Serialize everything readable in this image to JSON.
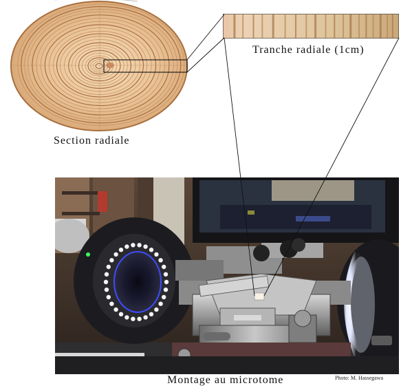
{
  "labels": {
    "section": "Section radiale",
    "tranche": "Tranche radiale (1cm)",
    "montage": "Montage au microtome",
    "credit": "Photo: M. Hassegawa"
  },
  "rings": [
    0.04,
    0.07,
    0.1,
    0.13,
    0.16,
    0.2,
    0.24,
    0.28,
    0.32,
    0.36,
    0.41,
    0.46,
    0.5,
    0.54,
    0.59,
    0.64,
    0.69,
    0.74,
    0.79,
    0.84,
    0.88,
    0.92,
    0.96
  ],
  "strip_bands": [
    0.06,
    0.11,
    0.17,
    0.22,
    0.28,
    0.35,
    0.41,
    0.47,
    0.52,
    0.58,
    0.63,
    0.68,
    0.72,
    0.77,
    0.81,
    0.85,
    0.89,
    0.93,
    0.96
  ],
  "led_count": 30
}
